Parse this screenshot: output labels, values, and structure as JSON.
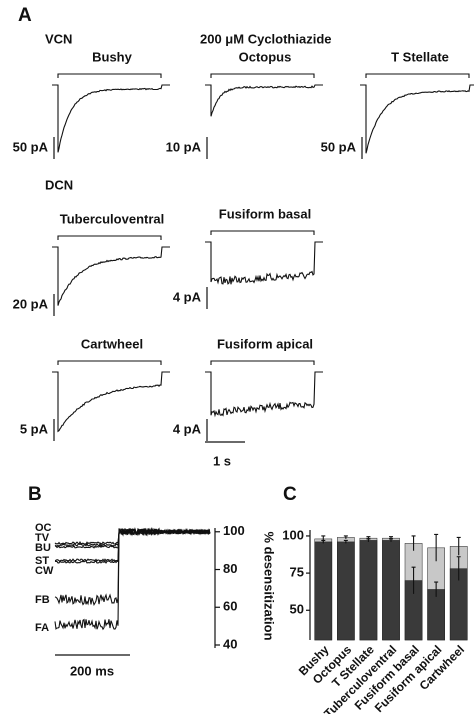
{
  "panel_a": {
    "label": "A",
    "vcn": "VCN",
    "drug": "200 μM Cyclothiazide",
    "dcn": "DCN",
    "time_scale": "1 s",
    "cells": [
      {
        "name": "Bushy",
        "scale": "50 pA"
      },
      {
        "name": "Octopus",
        "scale": "10 pA"
      },
      {
        "name": "T Stellate",
        "scale": "50 pA"
      },
      {
        "name": "Tuberculoventral",
        "scale": "20 pA"
      },
      {
        "name": "Fusiform basal",
        "scale": "4 pA"
      },
      {
        "name": "Cartwheel",
        "scale": "5 pA"
      },
      {
        "name": "Fusiform apical",
        "scale": "4 pA"
      }
    ]
  },
  "panel_b": {
    "label": "B",
    "ylabel": "% desensitization",
    "ylim": [
      40,
      102
    ],
    "yticks": [
      40,
      60,
      80,
      100
    ],
    "time_scale": "200 ms",
    "final": 100,
    "traces": [
      {
        "name": "OC",
        "level": 94
      },
      {
        "name": "TV",
        "level": 93
      },
      {
        "name": "BU",
        "level": 92
      },
      {
        "name": "ST",
        "level": 85
      },
      {
        "name": "CW",
        "level": 84
      },
      {
        "name": "FB",
        "level": 64
      },
      {
        "name": "FA",
        "level": 51
      }
    ]
  },
  "chart_data": {
    "type": "bar",
    "label": "C",
    "categories": [
      "Bushy",
      "Octopus",
      "T Stellate",
      "Tuberculoventral",
      "Fusiform basal",
      "Fusiform apical",
      "Cartwheel"
    ],
    "series": [
      {
        "color": "#c8c8c8",
        "values": [
          98,
          99,
          98.5,
          98.5,
          95,
          92,
          93
        ],
        "errors": [
          2,
          1,
          1,
          1,
          5,
          9,
          6
        ]
      },
      {
        "color": "#3a3a3a",
        "values": [
          96,
          96,
          97,
          97,
          70,
          64,
          78
        ],
        "errors": [
          1,
          1,
          1,
          1,
          9,
          5,
          8
        ]
      }
    ],
    "ylim": [
      30,
      104
    ],
    "yticks": [
      50,
      75,
      100
    ]
  }
}
